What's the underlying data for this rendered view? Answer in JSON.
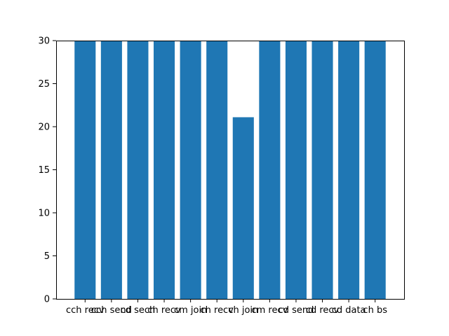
{
  "chart_data": {
    "type": "bar",
    "categories": [
      "cch recv",
      "cch send",
      "cd sech",
      "ch recv",
      "cm join",
      "ch recv",
      "ch join",
      "cm recv",
      "cd send",
      "cd recv",
      "cd data",
      "ch bs"
    ],
    "values": [
      30,
      30,
      30,
      30,
      30,
      30,
      21.1,
      30,
      30,
      30,
      30,
      30
    ],
    "title": "",
    "xlabel": "",
    "ylabel": "",
    "ylim": [
      0,
      30
    ],
    "yticks": [
      0,
      5,
      10,
      15,
      20,
      25,
      30
    ],
    "grid": false,
    "bar_color": "#1f77b4"
  }
}
